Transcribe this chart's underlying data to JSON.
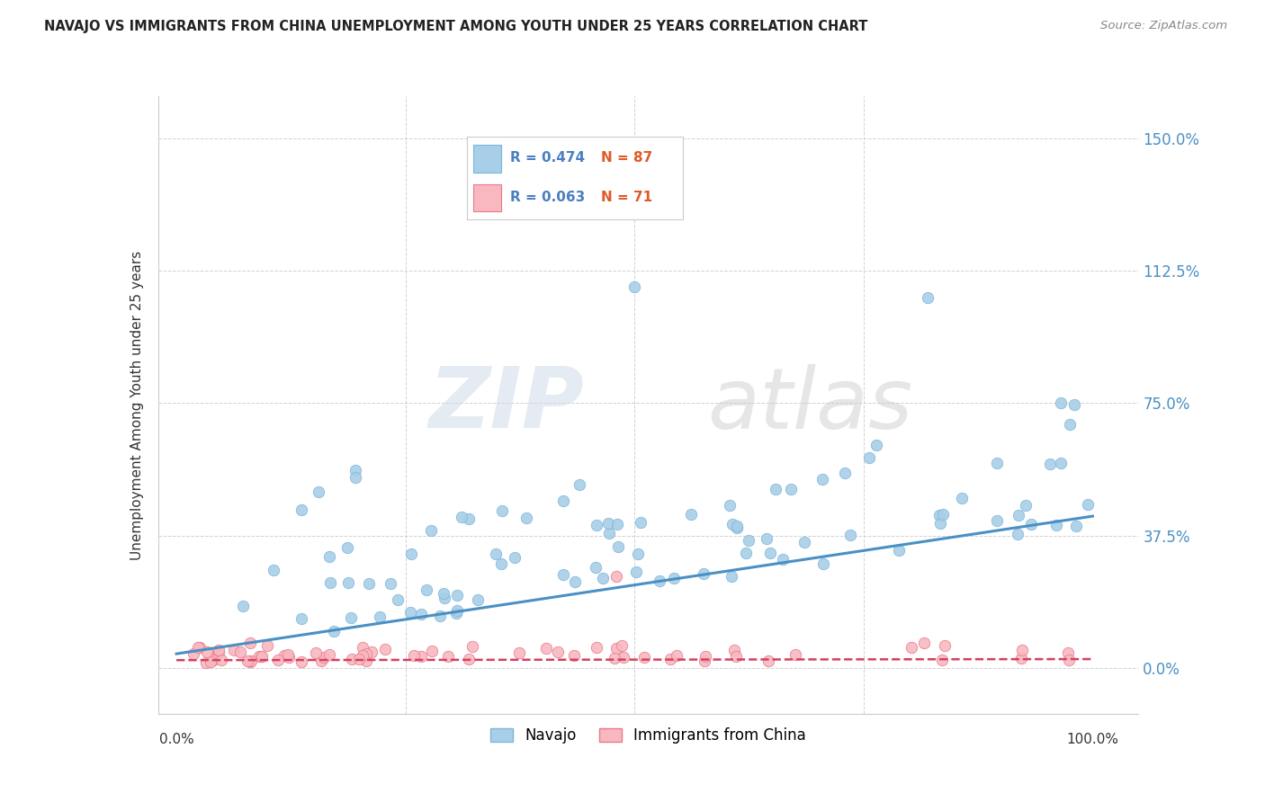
{
  "title": "NAVAJO VS IMMIGRANTS FROM CHINA UNEMPLOYMENT AMONG YOUTH UNDER 25 YEARS CORRELATION CHART",
  "source": "Source: ZipAtlas.com",
  "ylabel": "Unemployment Among Youth under 25 years",
  "yticks": [
    "0.0%",
    "37.5%",
    "75.0%",
    "112.5%",
    "150.0%"
  ],
  "ytick_vals": [
    0.0,
    0.375,
    0.75,
    1.125,
    1.5
  ],
  "xlim": [
    -0.02,
    1.05
  ],
  "ylim": [
    -0.13,
    1.62
  ],
  "navajo_R": "R = 0.474",
  "navajo_N": "N = 87",
  "china_R": "R = 0.063",
  "china_N": "N = 71",
  "navajo_color": "#a8cfe8",
  "navajo_edge": "#7eb6d9",
  "china_color": "#f9b8c0",
  "china_edge": "#e87a8a",
  "trend_navajo_color": "#4a90c4",
  "trend_china_color": "#d44060",
  "legend_label1": "Navajo",
  "legend_label2": "Immigrants from China",
  "legend_R_color": "#4a7fc1",
  "legend_N_color": "#e05a28",
  "watermark_zip": "ZIP",
  "watermark_atlas": "atlas"
}
